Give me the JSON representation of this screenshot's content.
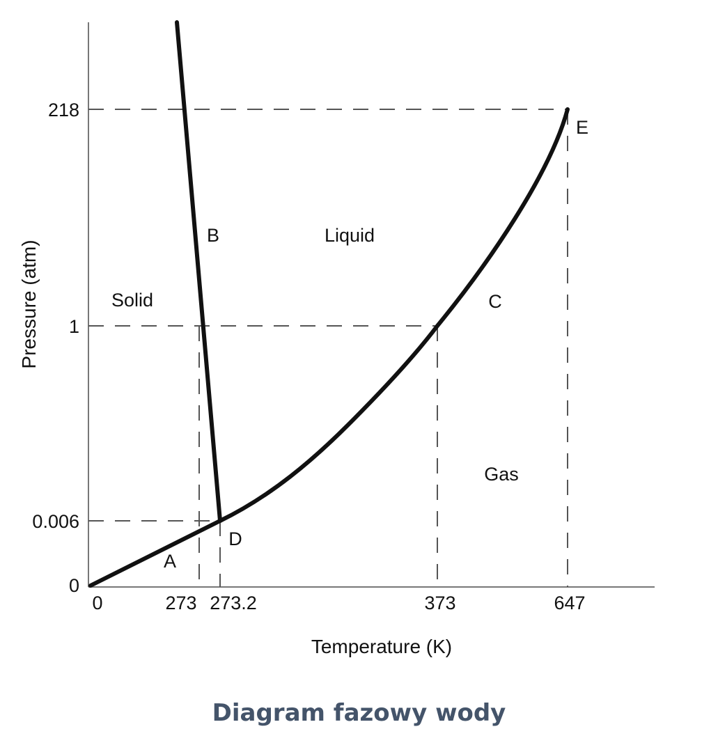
{
  "chart_data": {
    "type": "line",
    "title": "Diagram fazowy wody",
    "xlabel": "Temperature (K)",
    "ylabel": "Pressure (atm)",
    "x_ticks": [
      "0",
      "273",
      "273.2",
      "373",
      "647"
    ],
    "y_ticks": [
      "0",
      "0.006",
      "1",
      "218"
    ],
    "scale": "schematic (not to scale)",
    "grid": false,
    "dashed_guides": [
      {
        "x": "273",
        "y": "1"
      },
      {
        "x": "273.2",
        "y": "0.006"
      },
      {
        "x": "373",
        "y": "1"
      },
      {
        "x": "647",
        "y": "218"
      }
    ],
    "series": [
      {
        "label": "A",
        "points": [
          {
            "x": "0",
            "y": "0"
          },
          {
            "x": "273.2",
            "y": "0.006"
          }
        ]
      },
      {
        "label": "B",
        "points": [
          {
            "x": "273.2",
            "y": "0.006"
          },
          {
            "x": "273",
            "y": "1"
          }
        ]
      },
      {
        "label": "C",
        "points": [
          {
            "x": "273.2",
            "y": "0.006"
          },
          {
            "x": "373",
            "y": "1"
          },
          {
            "x": "647",
            "y": "218"
          }
        ]
      }
    ],
    "points": [
      {
        "label": "D",
        "x": "273.2",
        "y": "0.006"
      },
      {
        "label": "E",
        "x": "647",
        "y": "218"
      }
    ],
    "regions": [
      "Solid",
      "Liquid",
      "Gas"
    ]
  }
}
